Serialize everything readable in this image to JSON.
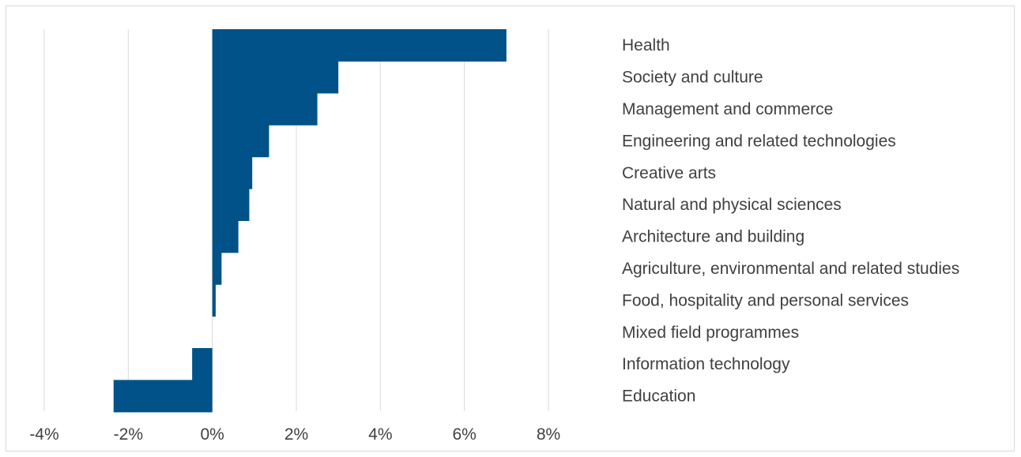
{
  "chart_data": {
    "type": "bar",
    "orientation": "horizontal",
    "categories": [
      "Health",
      "Society and culture",
      "Management and commerce",
      "Engineering and related technologies",
      "Creative arts",
      "Natural and physical sciences",
      "Architecture and building",
      "Agriculture, environmental and related studies",
      "Food, hospitality and personal services",
      "Mixed field programmes",
      "Information technology",
      "Education"
    ],
    "values": [
      7.0,
      3.0,
      2.5,
      1.35,
      0.95,
      0.88,
      0.62,
      0.22,
      0.08,
      0.0,
      -0.48,
      -2.35
    ],
    "x_ticks": [
      "-4%",
      "-2%",
      "0%",
      "2%",
      "4%",
      "6%",
      "8%"
    ],
    "xlim": [
      -4,
      8
    ],
    "unit": "%",
    "grid": true,
    "bar_color": "#005289",
    "grid_color": "#d9d9d9",
    "title": "",
    "xlabel": "",
    "ylabel": ""
  }
}
